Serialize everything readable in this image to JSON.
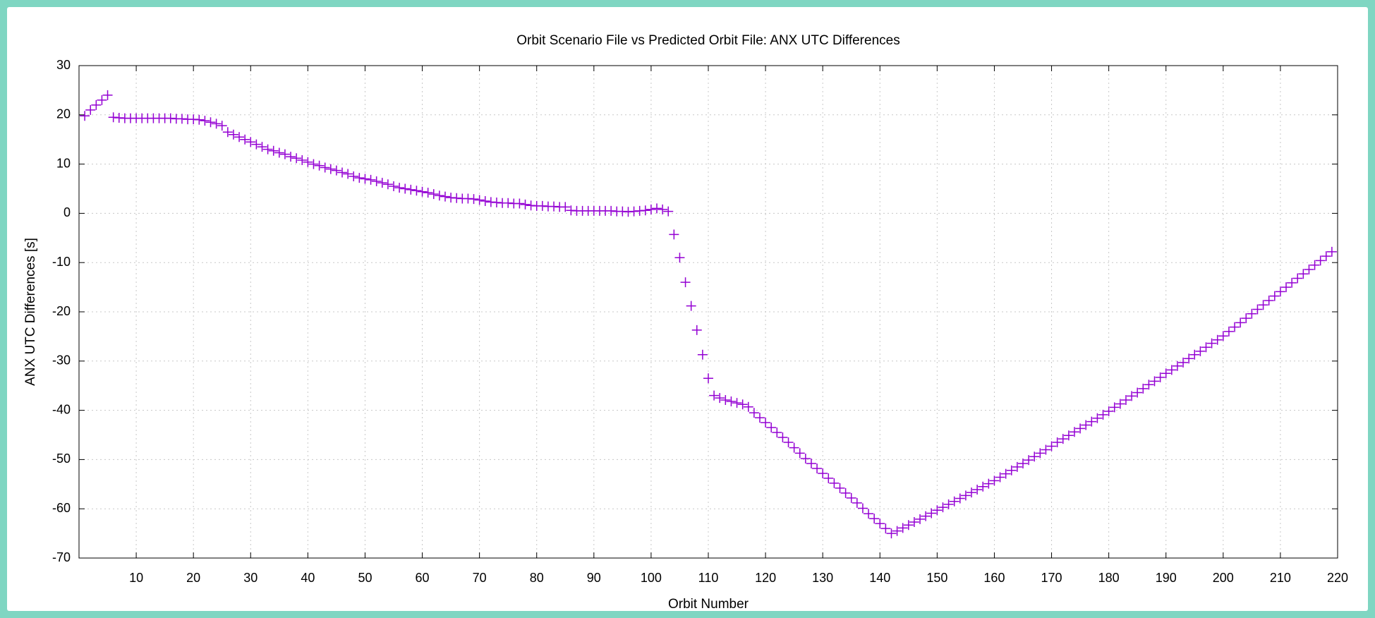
{
  "chart_data": {
    "type": "scatter",
    "title": "Orbit Scenario File vs Predicted Orbit File: ANX UTC Differences",
    "xlabel": "Orbit Number",
    "ylabel": "ANX UTC Differences [s]",
    "xlim": [
      0,
      220
    ],
    "xticks": [
      10,
      20,
      30,
      40,
      50,
      60,
      70,
      80,
      90,
      100,
      110,
      120,
      130,
      140,
      150,
      160,
      170,
      180,
      190,
      200,
      210,
      220
    ],
    "ylim": [
      -70,
      30
    ],
    "yticks": [
      -70,
      -60,
      -50,
      -40,
      -30,
      -20,
      -10,
      0,
      10,
      20,
      30
    ],
    "grid": true,
    "series": [
      {
        "color": "#9400d3",
        "x": [
          1,
          2,
          3,
          4,
          5,
          6,
          7,
          8,
          9,
          10,
          11,
          12,
          13,
          14,
          15,
          16,
          17,
          18,
          19,
          20,
          21,
          22,
          23,
          24,
          25,
          26,
          27,
          28,
          29,
          30,
          31,
          32,
          33,
          34,
          35,
          36,
          37,
          38,
          39,
          40,
          41,
          42,
          43,
          44,
          45,
          46,
          47,
          48,
          49,
          50,
          51,
          52,
          53,
          54,
          55,
          56,
          57,
          58,
          59,
          60,
          61,
          62,
          63,
          64,
          65,
          66,
          67,
          68,
          69,
          70,
          71,
          72,
          73,
          74,
          75,
          76,
          77,
          78,
          79,
          80,
          81,
          82,
          83,
          84,
          85,
          86,
          87,
          88,
          89,
          90,
          91,
          92,
          93,
          94,
          95,
          96,
          97,
          98,
          99,
          100,
          101,
          102,
          103,
          104,
          105,
          106,
          107,
          108,
          109,
          110,
          111,
          112,
          113,
          114,
          115,
          116,
          117,
          118,
          119,
          120,
          121,
          122,
          123,
          124,
          125,
          126,
          127,
          128,
          129,
          130,
          131,
          132,
          133,
          134,
          135,
          136,
          137,
          138,
          139,
          140,
          141,
          142,
          143,
          144,
          145,
          146,
          147,
          148,
          149,
          150,
          151,
          152,
          153,
          154,
          155,
          156,
          157,
          158,
          159,
          160,
          161,
          162,
          163,
          164,
          165,
          166,
          167,
          168,
          169,
          170,
          171,
          172,
          173,
          174,
          175,
          176,
          177,
          178,
          179,
          180,
          181,
          182,
          183,
          184,
          185,
          186,
          187,
          188,
          189,
          190,
          191,
          192,
          193,
          194,
          195,
          196,
          197,
          198,
          199,
          200,
          201,
          202,
          203,
          204,
          205,
          206,
          207,
          208,
          209,
          210,
          211,
          212,
          213,
          214,
          215,
          216,
          217,
          218,
          219
        ],
        "values": [
          19.8,
          21,
          22,
          23,
          24,
          19.5,
          19.4,
          19.3,
          19.3,
          19.3,
          19.3,
          19.3,
          19.3,
          19.3,
          19.3,
          19.3,
          19.2,
          19.2,
          19.1,
          19.1,
          19,
          18.8,
          18.5,
          18.2,
          17.8,
          16.5,
          16,
          15.5,
          15,
          14.5,
          14,
          13.5,
          13,
          12.7,
          12.3,
          12,
          11.5,
          11.2,
          10.8,
          10.4,
          10,
          9.7,
          9.3,
          9,
          8.7,
          8.3,
          8,
          7.5,
          7.2,
          7,
          6.8,
          6.5,
          6.2,
          5.9,
          5.5,
          5.2,
          5,
          4.8,
          4.6,
          4.4,
          4.2,
          3.9,
          3.6,
          3.4,
          3.2,
          3.1,
          3,
          3,
          2.9,
          2.7,
          2.5,
          2.3,
          2.2,
          2.1,
          2.1,
          2,
          2,
          1.8,
          1.6,
          1.5,
          1.5,
          1.4,
          1.4,
          1.3,
          1.3,
          0.6,
          0.5,
          0.5,
          0.5,
          0.5,
          0.5,
          0.5,
          0.5,
          0.4,
          0.4,
          0.3,
          0.4,
          0.5,
          0.6,
          0.8,
          1,
          0.8,
          0.4,
          -4.3,
          -9,
          -14,
          -18.8,
          -23.7,
          -28.7,
          -33.5,
          -37,
          -37.5,
          -37.9,
          -38.2,
          -38.5,
          -38.8,
          -39.3,
          -40.5,
          -41.5,
          -42.5,
          -43.5,
          -44.5,
          -45.5,
          -46.5,
          -47.6,
          -48.7,
          -49.8,
          -50.8,
          -51.8,
          -52.8,
          -53.8,
          -54.8,
          -55.8,
          -56.8,
          -57.8,
          -58.8,
          -59.9,
          -61,
          -62,
          -63,
          -64,
          -65,
          -64.5,
          -63.9,
          -63.3,
          -62.7,
          -62.1,
          -61.5,
          -60.9,
          -60.3,
          -59.7,
          -59.1,
          -58.5,
          -57.9,
          -57.3,
          -56.7,
          -56.1,
          -55.5,
          -54.9,
          -54.3,
          -53.6,
          -52.9,
          -52.2,
          -51.5,
          -50.8,
          -50.1,
          -49.4,
          -48.7,
          -48,
          -47.3,
          -46.5,
          -45.8,
          -45.1,
          -44.4,
          -43.7,
          -43,
          -42.3,
          -41.6,
          -40.9,
          -40.2,
          -39.4,
          -38.7,
          -37.9,
          -37.1,
          -36.4,
          -35.6,
          -34.8,
          -34.1,
          -33.3,
          -32.5,
          -31.8,
          -31,
          -30.3,
          -29.5,
          -28.7,
          -28,
          -27.2,
          -26.4,
          -25.7,
          -24.9,
          -24,
          -23.1,
          -22.2,
          -21.3,
          -20.4,
          -19.5,
          -18.6,
          -17.7,
          -16.8,
          -15.9,
          -15,
          -14.1,
          -13.2,
          -12.3,
          -11.4,
          -10.5,
          -9.6,
          -8.7,
          -7.8
        ]
      }
    ]
  }
}
